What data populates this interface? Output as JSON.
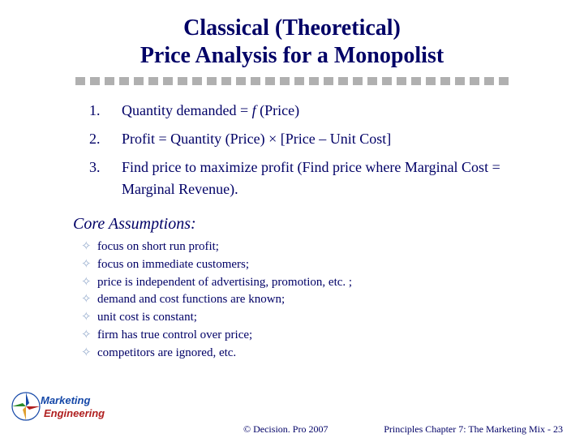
{
  "title_line1": "Classical (Theoretical)",
  "title_line2": "Price Analysis for a Monopolist",
  "divider_count": 30,
  "numbered": [
    {
      "n": "1.",
      "html": "Quantity demanded = <span class='fstyle'>f</span> (Price)"
    },
    {
      "n": "2.",
      "html": "Profit  =  Quantity (Price)  ×  [Price – Unit Cost]"
    },
    {
      "n": "3.",
      "html": "Find price to maximize profit (Find price where Marginal Cost = Marginal Revenue)."
    }
  ],
  "assumptions_title": "Core Assumptions:",
  "assumptions": [
    "focus on short run profit;",
    "focus on immediate customers;",
    "price is independent of advertising, promotion, etc. ;",
    "demand and cost functions are known;",
    "unit cost is constant;",
    "firm has true control over price;",
    "competitors are ignored, etc."
  ],
  "logo": {
    "word1": "Marketing",
    "word2": "Engineering",
    "word1_color": "#1548a8",
    "word2_color": "#b02020",
    "compass_colors": [
      "#1548a8",
      "#b02020",
      "#e0a030",
      "#2a8a2a"
    ]
  },
  "copyright": "©  Decision. Pro 2007",
  "pageref": "Principles Chapter 7: The Marketing Mix - 23",
  "colors": {
    "text": "#000066",
    "divider": "#b0b0b0",
    "bullet": "#9bb0d0",
    "background": "#ffffff"
  }
}
